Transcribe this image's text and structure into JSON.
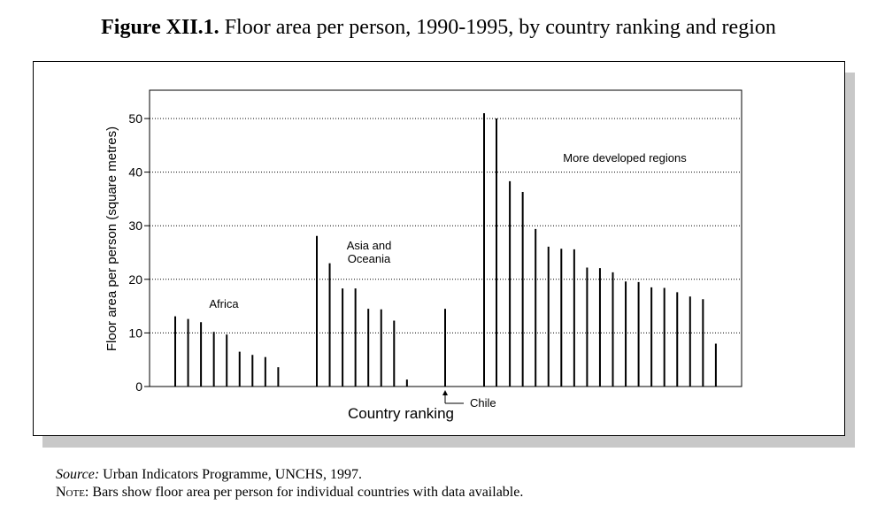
{
  "figure": {
    "title_label": "Figure XII.1.",
    "title_text": " Floor area per person, 1990-1995, by country ranking and region"
  },
  "footnotes": {
    "source_label": "Source:",
    "source_text": " Urban Indicators Programme, UNCHS, 1997.",
    "note_label": "Note:",
    "note_text": " Bars show floor area per person for individual countries with data available."
  },
  "chart_data": {
    "type": "bar",
    "title": "",
    "xlabel": "Country ranking",
    "ylabel": "Floor area per person (square metres)",
    "ylim": [
      0,
      55
    ],
    "yticks": [
      0,
      10,
      20,
      30,
      40,
      50
    ],
    "grid": "horizontal dotted",
    "series": [
      {
        "name": "Africa",
        "values": [
          13.1,
          12.6,
          12.0,
          10.2,
          9.7,
          6.5,
          5.9,
          5.5,
          3.6
        ]
      },
      {
        "name": "Asia and Oceania",
        "values": [
          28.1,
          23.0,
          18.3,
          18.3,
          14.5,
          14.4,
          12.3,
          1.3,
          14.5
        ]
      },
      {
        "name": "More developed regions",
        "values": [
          51.0,
          50.0,
          38.3,
          36.3,
          29.4,
          26.1,
          25.7,
          25.6,
          22.2,
          22.1,
          21.3,
          19.6,
          19.5,
          18.5,
          18.4,
          17.6,
          16.8,
          16.3,
          8.0
        ]
      }
    ],
    "annotations": [
      {
        "text": "Africa",
        "group": "Africa"
      },
      {
        "text": "Asia and",
        "group": "Asia and Oceania"
      },
      {
        "text": "Oceania",
        "group": "Asia and Oceania"
      },
      {
        "text": "More developed regions",
        "group": "More developed regions"
      },
      {
        "text": "Chile",
        "points_to": "Asia and Oceania",
        "index": 8
      }
    ]
  }
}
